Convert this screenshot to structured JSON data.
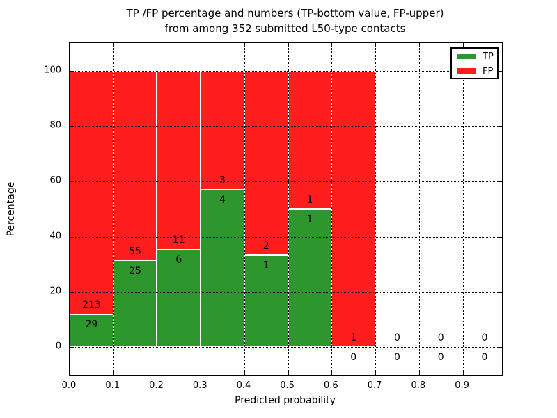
{
  "title": {
    "line1": "TP /FP percentage and numbers (TP-bottom value, FP-upper)",
    "line2": "from among 352 submitted L50-type contacts"
  },
  "chart_data": {
    "type": "bar",
    "stacked": true,
    "unit": "percent-of-bin",
    "title": "TP /FP percentage and numbers (TP-bottom value, FP-upper)\nfrom among 352 submitted L50-type contacts",
    "xlabel": "Predicted probability",
    "ylabel": "Percentage",
    "total_contacts": 352,
    "categories": [
      "0.0-0.1",
      "0.1-0.2",
      "0.2-0.3",
      "0.3-0.4",
      "0.4-0.5",
      "0.5-0.6",
      "0.6-0.7",
      "0.7-0.8",
      "0.8-0.9",
      "0.9-1.0"
    ],
    "series": [
      {
        "name": "TP",
        "color": "#2d962d",
        "values": [
          29,
          25,
          6,
          4,
          1,
          1,
          0,
          0,
          0,
          0
        ]
      },
      {
        "name": "FP",
        "color": "#ff1e1e",
        "values": [
          213,
          55,
          11,
          3,
          2,
          1,
          1,
          0,
          0,
          0
        ]
      }
    ],
    "tp_percent": [
      11.98,
      31.25,
      35.29,
      57.14,
      33.33,
      50.0,
      0.0,
      0.0,
      0.0,
      0.0
    ],
    "bar_total_percent": [
      100,
      100,
      100,
      100,
      100,
      100,
      100,
      0,
      0,
      0
    ],
    "x_tick_labels": [
      "0.0",
      "0.1",
      "0.2",
      "0.3",
      "0.4",
      "0.5",
      "0.6",
      "0.7",
      "0.8",
      "0.9"
    ],
    "y_ticks": [
      0,
      20,
      40,
      60,
      80,
      100
    ],
    "ylim": [
      -10,
      110
    ],
    "xlim": [
      0.0,
      0.99
    ],
    "bin_width": 0.1,
    "grid": "dotted-on",
    "legend_position": "upper-right",
    "bar_edge_color": "#ffffff"
  },
  "legend": {
    "tp_label": "TP",
    "fp_label": "FP"
  },
  "colors": {
    "tp": "#2d962d",
    "fp": "#ff1e1e",
    "background": "#ffffff",
    "axis": "#000000"
  }
}
